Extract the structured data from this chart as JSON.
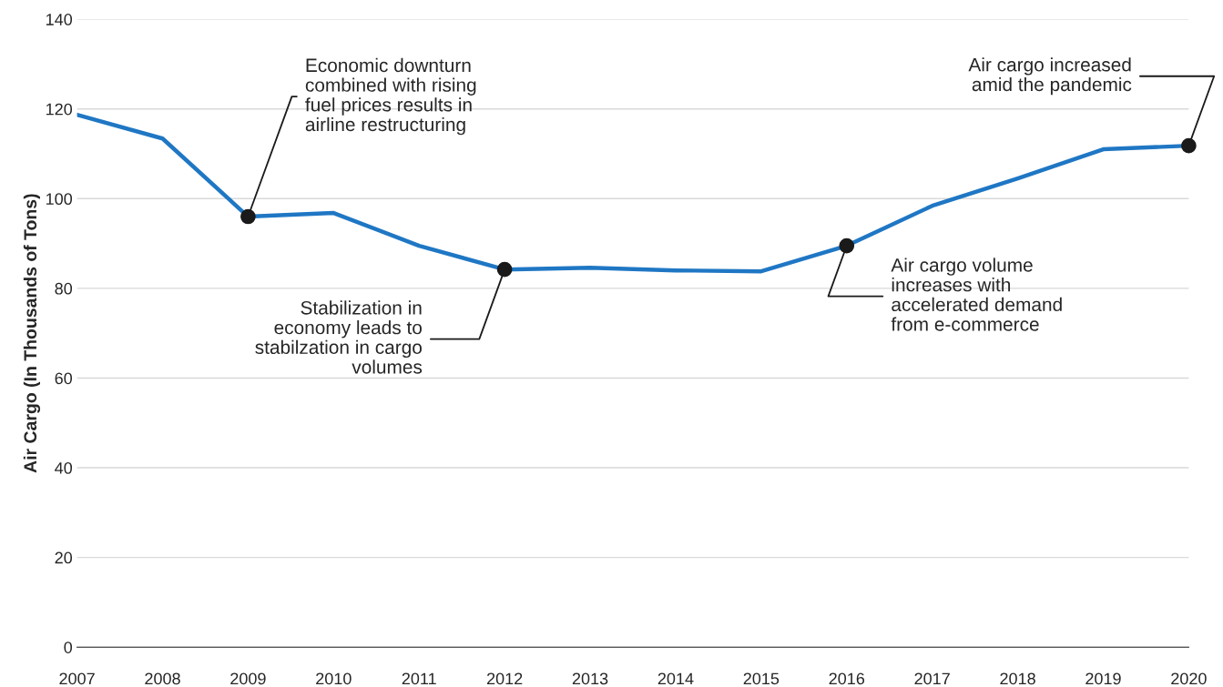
{
  "chart_data": {
    "type": "line",
    "ylabel": "Air Cargo (In Thousands of Tons)",
    "x": [
      2007,
      2008,
      2009,
      2010,
      2011,
      2012,
      2013,
      2014,
      2015,
      2016,
      2017,
      2018,
      2019,
      2020
    ],
    "series": [
      {
        "color": "#1f77c4",
        "values": [
          118.7,
          113.4,
          96,
          96.8,
          89.5,
          84.2,
          84.6,
          84,
          83.8,
          89.5,
          98.4,
          104.5,
          111,
          111.8
        ]
      }
    ],
    "xlim": [
      2007,
      2020
    ],
    "xticks": [
      2007,
      2008,
      2009,
      2010,
      2011,
      2012,
      2013,
      2014,
      2015,
      2016,
      2017,
      2018,
      2019,
      2020
    ],
    "ylim": [
      0,
      140
    ],
    "yticks": [
      0,
      20,
      40,
      60,
      80,
      100,
      120,
      140
    ],
    "grid": "y",
    "marker": "none",
    "line_style": "solid",
    "annotations": [
      {
        "text": "Economic downturn\ncombined with rising\nfuel prices results in\nairline restructuring",
        "x": 2009,
        "y": 96
      },
      {
        "text": "Stabilization in\neconomy leads to\nstabilzation in cargo\nvolumes",
        "x": 2012,
        "y": 84.2
      },
      {
        "text": "Air cargo volume\nincreases with\naccelerated demand\nfrom e-commerce",
        "x": 2016,
        "y": 89.5
      },
      {
        "text": "Air cargo increased\namid the pandemic",
        "x": 2020,
        "y": 111.8
      }
    ]
  }
}
